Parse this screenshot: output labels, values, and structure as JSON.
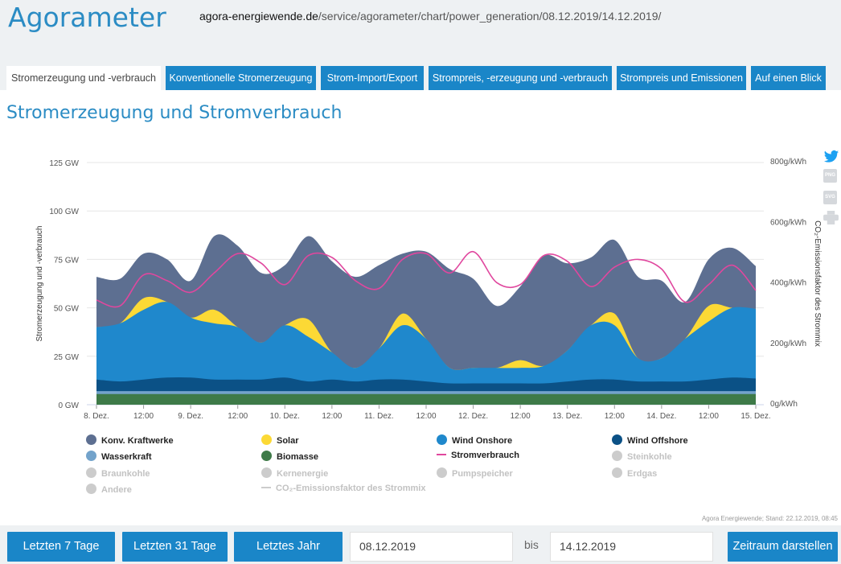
{
  "header": {
    "logo": "Agorameter",
    "url_domain": "agora-energiewende.de",
    "url_path": "/service/agorameter/chart/power_generation/08.12.2019/14.12.2019/"
  },
  "tabs": [
    {
      "label": "Stromerzeugung und -verbrauch",
      "active": true
    },
    {
      "label": "Konventionelle Stromerzeugung",
      "active": false
    },
    {
      "label": "Strom-Import/Export",
      "active": false
    },
    {
      "label": "Strompreis, -erzeugung und -verbrauch",
      "active": false
    },
    {
      "label": "Strompreis und Emissionen",
      "active": false
    },
    {
      "label": "Auf einen Blick",
      "active": false
    }
  ],
  "page_title": "Stromerzeugung und Stromverbrauch",
  "side_icons": [
    "twitter-icon",
    "png-export-icon",
    "svg-export-icon",
    "print-icon"
  ],
  "side_icon_labels": {
    "png": "PNG",
    "svg": "SVG"
  },
  "credit": "Agora Energiewende; Stand: 22.12.2019, 08:45",
  "legend": [
    {
      "label": "Konv. Kraftwerke",
      "color": "#5d6f91",
      "enabled": true,
      "shape": "dot"
    },
    {
      "label": "Solar",
      "color": "#fcd935",
      "enabled": true,
      "shape": "dot"
    },
    {
      "label": "Wind Onshore",
      "color": "#1f88cc",
      "enabled": true,
      "shape": "dot"
    },
    {
      "label": "Wind Offshore",
      "color": "#0b5186",
      "enabled": true,
      "shape": "dot"
    },
    {
      "label": "Wasserkraft",
      "color": "#73a3cb",
      "enabled": true,
      "shape": "dot"
    },
    {
      "label": "Biomasse",
      "color": "#3e7a48",
      "enabled": true,
      "shape": "dot"
    },
    {
      "label": "Stromverbrauch",
      "color": "#e0479e",
      "enabled": true,
      "shape": "line"
    },
    {
      "label": "Steinkohle",
      "color": "#cccccc",
      "enabled": false,
      "shape": "dot"
    },
    {
      "label": "Braunkohle",
      "color": "#cccccc",
      "enabled": false,
      "shape": "dot"
    },
    {
      "label": "Kernenergie",
      "color": "#cccccc",
      "enabled": false,
      "shape": "dot"
    },
    {
      "label": "Pumpspeicher",
      "color": "#cccccc",
      "enabled": false,
      "shape": "dot"
    },
    {
      "label": "Erdgas",
      "color": "#cccccc",
      "enabled": false,
      "shape": "dot"
    },
    {
      "label": "Andere",
      "color": "#cccccc",
      "enabled": false,
      "shape": "dot"
    },
    {
      "label": "CO₂-Emissionsfaktor des Strommix",
      "color": "#cccccc",
      "enabled": false,
      "shape": "line"
    }
  ],
  "controls": {
    "btn_7": "Letzten 7 Tage",
    "btn_31": "Letzten 31 Tage",
    "btn_year": "Letztes Jahr",
    "from_date": "08.12.2019",
    "bis": "bis",
    "to_date": "14.12.2019",
    "submit": "Zeitraum darstellen"
  },
  "chart_data": {
    "type": "area",
    "stacked": true,
    "ylabel": "Stromerzeugung und -verbrauch",
    "y2label": "CO₂-Emissionsfaktor des Strommix",
    "yticks": [
      "0 GW",
      "25 GW",
      "50 GW",
      "75 GW",
      "100 GW",
      "125 GW"
    ],
    "ylim": [
      0,
      125
    ],
    "y2ticks": [
      "0g/kWh",
      "200g/kWh",
      "400g/kWh",
      "600g/kWh",
      "800g/kWh"
    ],
    "y2lim": [
      0,
      800
    ],
    "xticks": [
      "8. Dez.",
      "12:00",
      "9. Dez.",
      "12:00",
      "10. Dez.",
      "12:00",
      "11. Dez.",
      "12:00",
      "12. Dez.",
      "12:00",
      "13. Dez.",
      "12:00",
      "14. Dez.",
      "12:00",
      "15. Dez."
    ],
    "x_hours": [
      0,
      6,
      12,
      18,
      24,
      30,
      36,
      42,
      48,
      54,
      60,
      66,
      72,
      78,
      84,
      90,
      96,
      102,
      108,
      114,
      120,
      126,
      132,
      138,
      144,
      150,
      156,
      162,
      168
    ],
    "grid": true,
    "series": [
      {
        "name": "Biomasse",
        "color": "#3e7a48",
        "values": [
          5.5,
          5.5,
          5.5,
          5.5,
          5.5,
          5.5,
          5.5,
          5.5,
          5.5,
          5.5,
          5.5,
          5.5,
          5.5,
          5.5,
          5.5,
          5.5,
          5.5,
          5.5,
          5.5,
          5.5,
          5.5,
          5.5,
          5.5,
          5.5,
          5.5,
          5.5,
          5.5,
          5.5,
          5.5
        ]
      },
      {
        "name": "Wasserkraft",
        "color": "#73a3cb",
        "values": [
          1.5,
          1.5,
          1.5,
          1.5,
          1.5,
          1.5,
          1.5,
          1.5,
          1.5,
          1.5,
          1.5,
          1.5,
          1.5,
          1.5,
          1.5,
          1.5,
          1.5,
          1.5,
          1.5,
          1.5,
          1.5,
          1.5,
          1.5,
          1.5,
          1.5,
          1.5,
          1.5,
          1.5,
          1.5
        ]
      },
      {
        "name": "Wind Offshore",
        "color": "#0b5186",
        "values": [
          6,
          5,
          6,
          7,
          7,
          6,
          6,
          6,
          7,
          5,
          6,
          5,
          6,
          6,
          5,
          4,
          4,
          4,
          4,
          4,
          5,
          6,
          6,
          5,
          5,
          5,
          6,
          7,
          6.5
        ]
      },
      {
        "name": "Wind Onshore",
        "color": "#1f88cc",
        "values": [
          27,
          30,
          36,
          39,
          31,
          29,
          27,
          19,
          27,
          23,
          14,
          7,
          16,
          28,
          22,
          8,
          8,
          8,
          8,
          9,
          16,
          28,
          28,
          12,
          12,
          22,
          30,
          36,
          36
        ]
      },
      {
        "name": "Solar",
        "color": "#fcd935",
        "values": [
          0,
          0,
          6,
          0,
          0,
          7,
          0,
          0,
          0,
          9,
          0,
          0,
          0,
          6,
          0,
          0,
          0,
          0,
          4,
          0,
          0,
          0,
          6,
          0,
          0,
          0,
          8,
          0,
          0
        ]
      },
      {
        "name": "Konv. Kraftwerke",
        "color": "#5d6f91",
        "values": [
          26,
          23,
          23,
          22,
          19,
          38,
          42,
          36,
          31,
          43,
          47,
          47,
          43,
          31,
          45,
          51,
          46,
          32,
          38,
          57,
          45,
          35,
          38,
          42,
          40,
          19,
          24,
          31,
          22
        ]
      }
    ],
    "line_series": [
      {
        "name": "Stromverbrauch",
        "color": "#e0479e",
        "values": [
          54,
          51,
          67,
          64,
          58,
          68,
          78,
          73,
          62,
          77,
          76,
          64,
          60,
          75,
          78,
          68,
          79,
          63,
          62,
          77,
          74,
          61,
          71,
          75,
          70,
          53,
          62,
          72,
          59
        ]
      }
    ]
  }
}
